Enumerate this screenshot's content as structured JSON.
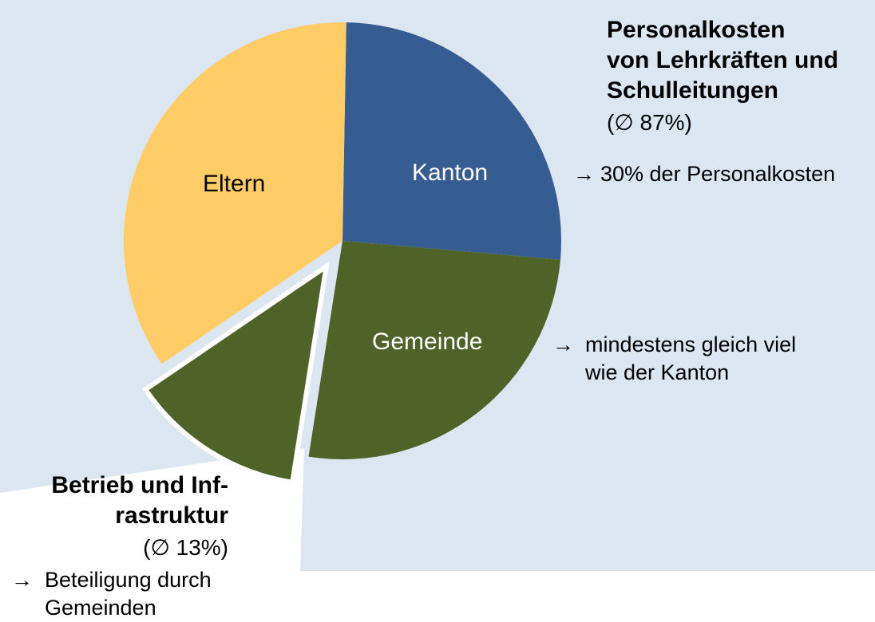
{
  "chart_data": {
    "type": "pie",
    "slices": [
      {
        "label": "Kanton",
        "value": 26.1
      },
      {
        "label": "Gemeinde",
        "value": 26.1
      },
      {
        "label": "",
        "value": 13
      },
      {
        "label": "Eltern",
        "value": 34.8
      }
    ],
    "colors": {
      "kanton": "#355D91",
      "gemeinde": "#4F6228",
      "eltern": "#FFCC66",
      "background_region": "#DCE6F0",
      "label_dark": "#000000",
      "label_light": "#FFFFFF"
    }
  },
  "labels": {
    "kanton": "Kanton",
    "gemeinde": "Gemeinde",
    "eltern": "Eltern"
  },
  "personnel": {
    "title_lines": [
      "Personalkosten",
      "von Lehrkräften und",
      "Schulleitungen"
    ],
    "share": "(∅ 87%)",
    "kanton_arrow": "→",
    "kanton_note": "30% der Personalkosten",
    "gemeinde_arrow": "→",
    "gemeinde_note_lines": [
      "mindestens gleich viel",
      "wie der Kanton"
    ]
  },
  "operations": {
    "title_lines": [
      "Betrieb und Inf-",
      "rastruktur"
    ],
    "share": "(∅ 13%)",
    "arrow": "→",
    "note_lines": [
      "Beteiligung durch",
      "Gemeinden"
    ]
  }
}
